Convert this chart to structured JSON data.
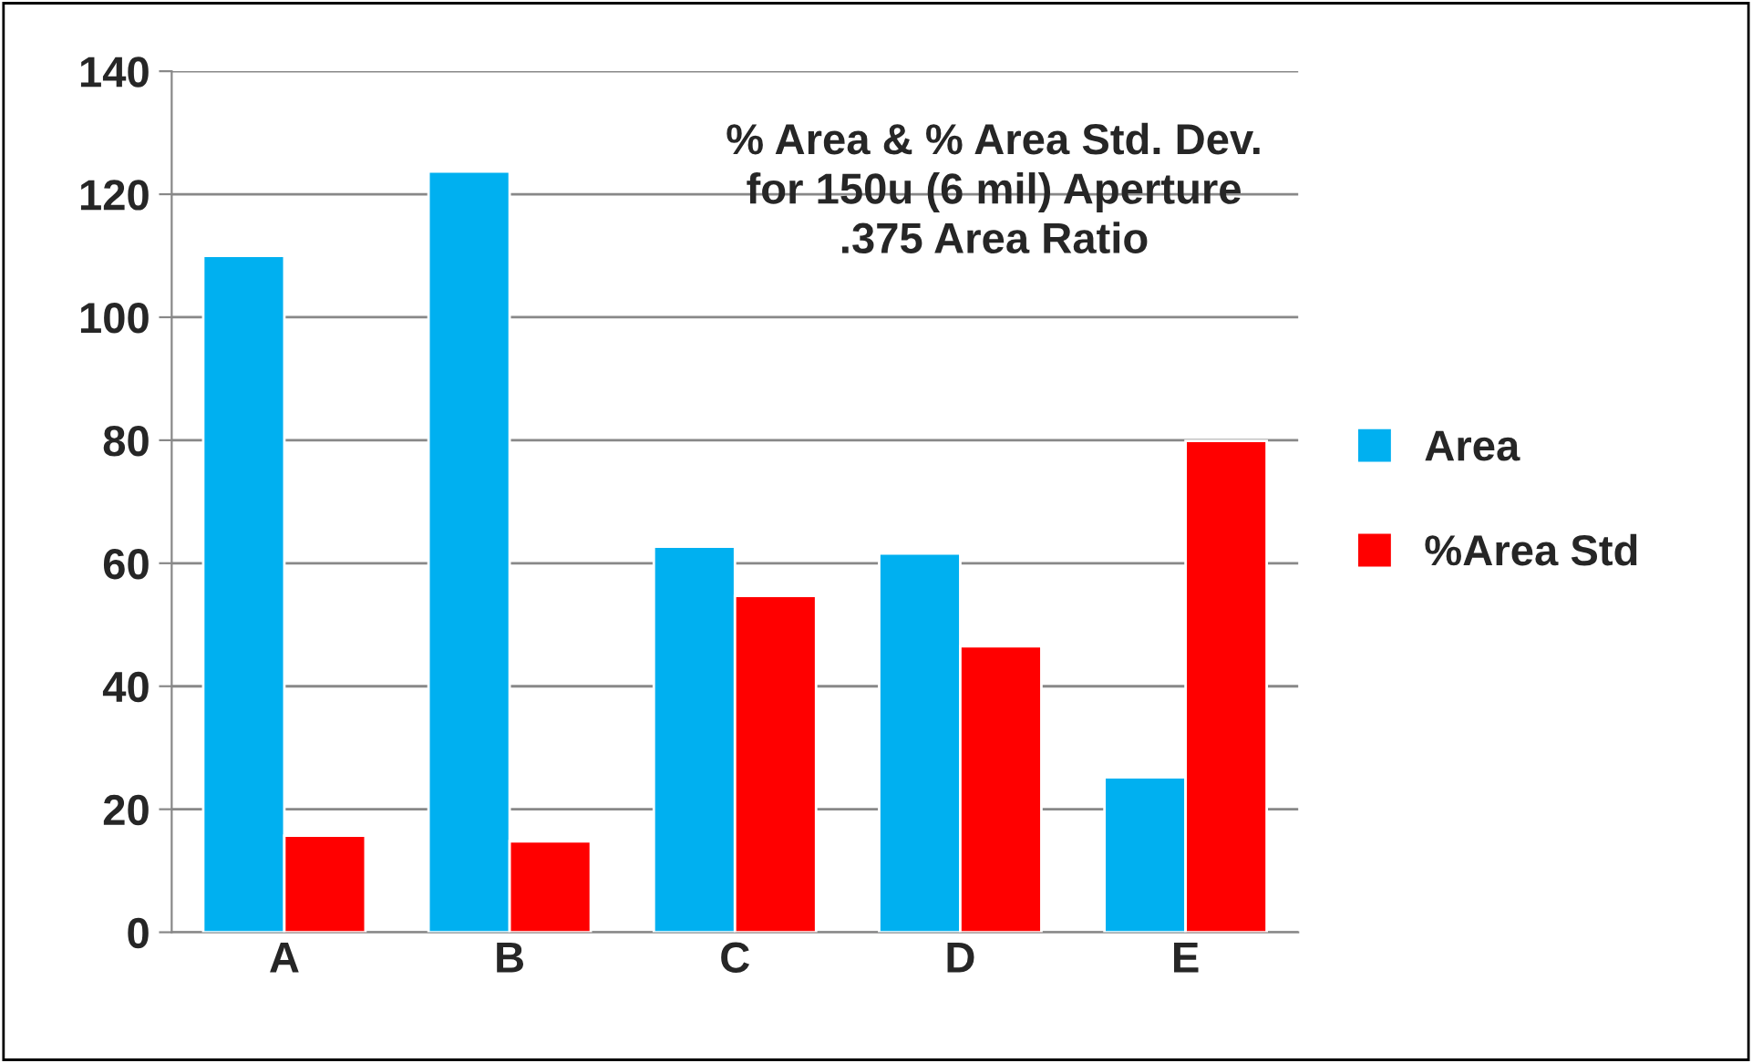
{
  "chart_data": {
    "type": "bar",
    "title": "% Area & % Area Std. Dev.\nfor 150u (6 mil) Aperture\n.375 Area Ratio",
    "categories": [
      "A",
      "B",
      "C",
      "D",
      "E"
    ],
    "series": [
      {
        "name": "Area",
        "color": "#00b0f0",
        "values": [
          110,
          123.7,
          62.7,
          61.6,
          25.2
        ]
      },
      {
        "name": "%Area Std",
        "color": "#ff0000",
        "values": [
          15.7,
          14.8,
          54.7,
          46.5,
          79.9
        ]
      }
    ],
    "ylim": [
      0,
      140
    ],
    "yticks": [
      0,
      20,
      40,
      60,
      80,
      100,
      120,
      140
    ],
    "grid": "y",
    "legend": "right"
  }
}
